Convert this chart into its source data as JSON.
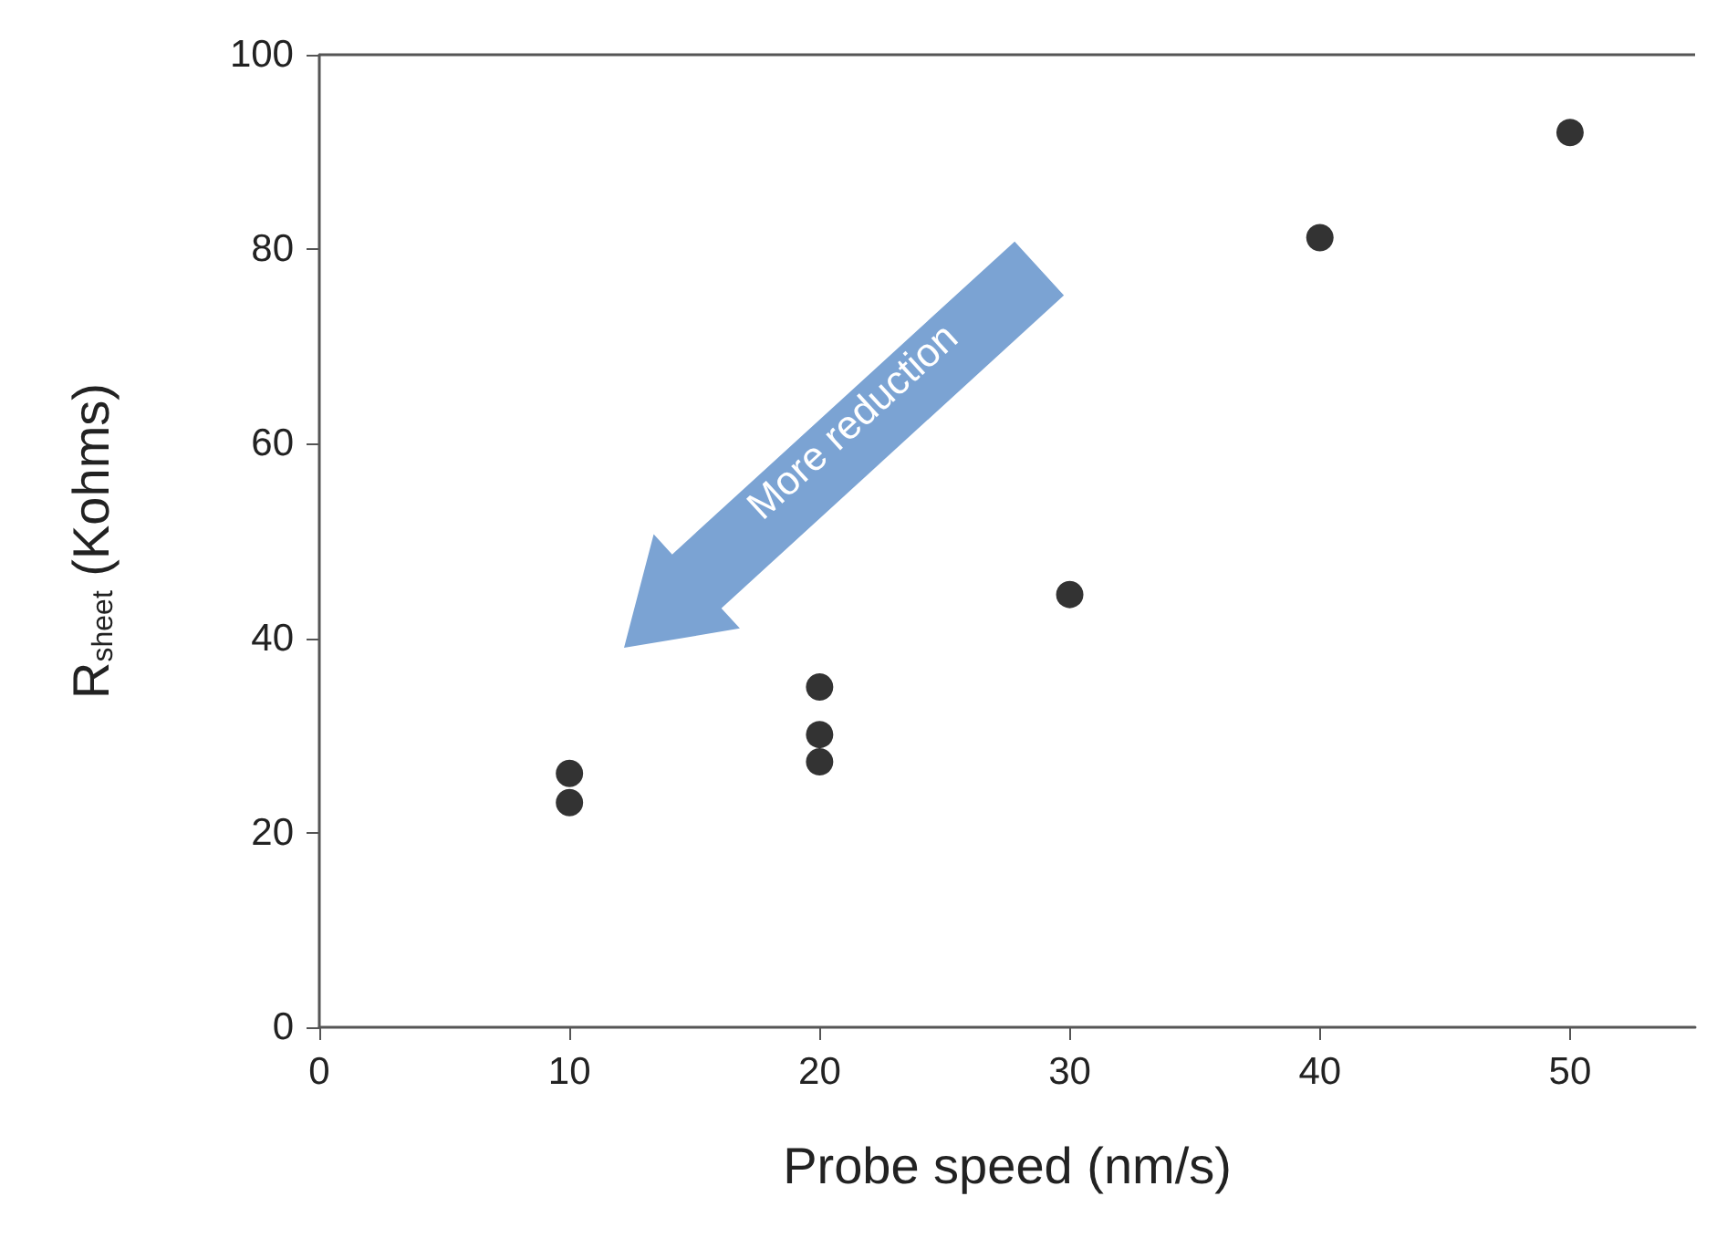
{
  "chart_data": {
    "type": "scatter",
    "xlabel": "Probe speed (nm/s)",
    "ylabel": "R$_{sheet}$ (Kohms)",
    "x": [
      10,
      10,
      20,
      20,
      20,
      30,
      40,
      50
    ],
    "values": [
      26.1,
      23.1,
      35.0,
      30.1,
      27.3,
      44.5,
      81.2,
      92.0
    ],
    "color": "#000000",
    "marker": "circle",
    "xlim": [
      0,
      55
    ],
    "xticks": [
      0,
      10,
      20,
      30,
      40,
      50
    ],
    "ylim": [
      0,
      100
    ],
    "yticks": [
      0,
      20,
      40,
      60,
      80,
      100
    ],
    "grid": false,
    "annotations": [
      "More reduction"
    ]
  }
}
